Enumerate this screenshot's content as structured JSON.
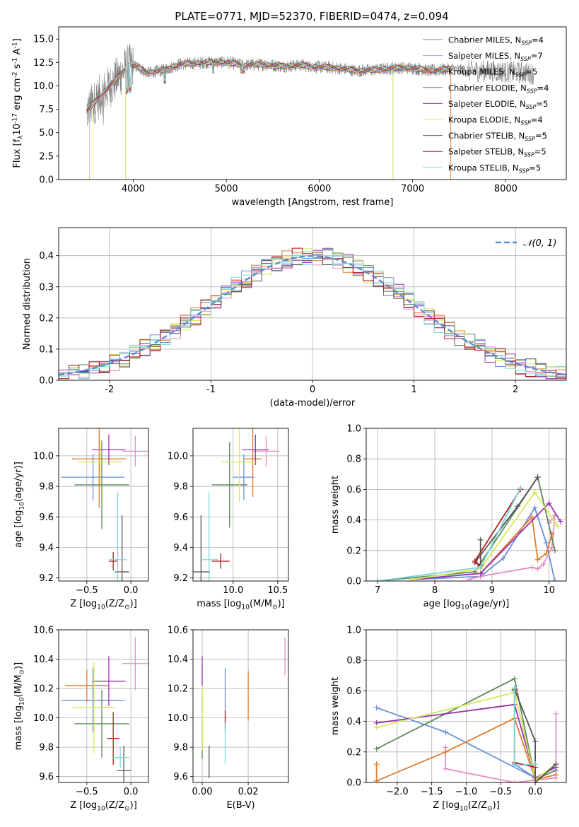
{
  "figure": {
    "title": "PLATE=0771, MJD=52370, FIBERID=0474, z=0.094"
  },
  "series": [
    {
      "name": "Chabrier MILES, N$_{SSP}$=4",
      "label": "Chabrier MILES, N",
      "sub": "SSP",
      "tail": "=4",
      "color": "#6a8fd6"
    },
    {
      "name": "Salpeter MILES, N$_{SSP}$=7",
      "label": "Salpeter MILES, N",
      "sub": "SSP",
      "tail": "=7",
      "color": "#e58ec0"
    },
    {
      "name": "Kroupa MILES, N$_{SSP}$=5",
      "label": "Kroupa MILES, N",
      "sub": "SSP",
      "tail": "=5",
      "color": "#e07b2a"
    },
    {
      "name": "Chabrier ELODIE, N$_{SSP}$=4",
      "label": "Chabrier ELODIE, N",
      "sub": "SSP",
      "tail": "=4",
      "color": "#5a8a5a"
    },
    {
      "name": "Salpeter ELODIE, N$_{SSP}$=5",
      "label": "Salpeter ELODIE, N",
      "sub": "SSP",
      "tail": "=5",
      "color": "#9b30b0"
    },
    {
      "name": "Kroupa ELODIE, N$_{SSP}$=4",
      "label": "Kroupa ELODIE, N",
      "sub": "SSP",
      "tail": "=4",
      "color": "#d6e85a"
    },
    {
      "name": "Chabrier STELIB, N$_{SSP}$=5",
      "label": "Chabrier STELIB, N",
      "sub": "SSP",
      "tail": "=5",
      "color": "#555555"
    },
    {
      "name": "Salpeter STELIB, N$_{SSP}$=5",
      "label": "Salpeter STELIB, N",
      "sub": "SSP",
      "tail": "=5",
      "color": "#b02020"
    },
    {
      "name": "Kroupa STELIB, N$_{SSP}$=5",
      "label": "Kroupa STELIB, N",
      "sub": "SSP",
      "tail": "=5",
      "color": "#7ad8d8"
    }
  ],
  "chart_data": [
    {
      "id": "spectrum",
      "type": "line",
      "xlabel": "wavelength [Angstrom, rest frame]",
      "ylabel": "Flux [f$_\\lambda$10$^{-17}$ erg cm$^{-2}$ s$^{-1}$ A$^{-1}$]",
      "xlim": [
        3200,
        8650
      ],
      "ylim": [
        0,
        16.3
      ],
      "xticks": [
        4000,
        5000,
        6000,
        7000,
        8000
      ],
      "yticks": [
        0.0,
        2.5,
        5.0,
        7.5,
        10.0,
        12.5,
        15.0
      ],
      "legend": "upper right",
      "grid": false,
      "continuum": [
        [
          3500,
          7.2
        ],
        [
          3600,
          8.4
        ],
        [
          3700,
          9.5
        ],
        [
          3800,
          10.5
        ],
        [
          3950,
          12.2
        ],
        [
          4050,
          12.0
        ],
        [
          4150,
          11.4
        ],
        [
          4300,
          11.6
        ],
        [
          4500,
          12.3
        ],
        [
          4800,
          12.5
        ],
        [
          5000,
          12.5
        ],
        [
          5200,
          12.2
        ],
        [
          5400,
          12.3
        ],
        [
          5600,
          12.1
        ],
        [
          5800,
          12.2
        ],
        [
          6000,
          12.0
        ],
        [
          6200,
          11.9
        ],
        [
          6400,
          11.6
        ],
        [
          6600,
          11.7
        ],
        [
          6800,
          11.9
        ],
        [
          7000,
          11.9
        ],
        [
          7200,
          11.6
        ],
        [
          7400,
          11.8
        ],
        [
          7600,
          11.6
        ],
        [
          7800,
          11.6
        ],
        [
          8000,
          11.5
        ],
        [
          8200,
          11.4
        ],
        [
          8300,
          11.3
        ]
      ]
    },
    {
      "id": "residuals",
      "type": "line",
      "xlabel": "(data-model)/error",
      "ylabel": "Normed distribution",
      "xlim": [
        -2.5,
        2.5
      ],
      "ylim": [
        0,
        0.49
      ],
      "xticks": [
        -2,
        -1,
        0,
        1,
        2
      ],
      "yticks": [
        0.0,
        0.1,
        0.2,
        0.3,
        0.4
      ],
      "grid": true,
      "legend": "upper right",
      "gaussian_label": "$\\mathcal{N}(0,1)$",
      "gaussian_legend": "𝒩(0, 1)"
    },
    {
      "id": "age_vs_Z",
      "type": "scatter",
      "xlabel": "Z [log$_{10}$(Z/Z$_\\odot$)]",
      "ylabel": "age  [log$_{10}$(age/yr)]",
      "xlim": [
        -0.82,
        0.2
      ],
      "ylim": [
        9.18,
        10.18
      ],
      "xticks": [
        -0.5,
        0.0
      ],
      "yticks": [
        9.2,
        9.4,
        9.6,
        9.8,
        10.0
      ],
      "grid": true,
      "points": [
        {
          "s": 0,
          "x": -0.43,
          "y": 9.86,
          "xerr": 0.36,
          "yerr": 0.15
        },
        {
          "s": 1,
          "x": 0.05,
          "y": 10.03,
          "xerr": 0.15,
          "yerr": 0.1
        },
        {
          "s": 2,
          "x": -0.36,
          "y": 9.98,
          "xerr": 0.31,
          "yerr": 0.32
        },
        {
          "s": 3,
          "x": -0.33,
          "y": 9.81,
          "xerr": 0.31,
          "yerr": 0.29
        },
        {
          "s": 4,
          "x": -0.25,
          "y": 10.04,
          "xerr": 0.19,
          "yerr": 0.1
        },
        {
          "s": 5,
          "x": -0.35,
          "y": 9.96,
          "xerr": 0.25,
          "yerr": 0.15
        },
        {
          "s": 6,
          "x": -0.1,
          "y": 9.24,
          "xerr": 0.08,
          "yerr": 0.37
        },
        {
          "s": 7,
          "x": -0.2,
          "y": 9.31,
          "xerr": 0.05,
          "yerr": 0.06
        },
        {
          "s": 8,
          "x": -0.15,
          "y": 9.32,
          "xerr": 0.1,
          "yerr": 0.44
        }
      ]
    },
    {
      "id": "age_vs_mass",
      "type": "scatter",
      "xlabel": "mass [log$_{10}$(M/M$_\\odot$)]",
      "ylabel": "",
      "xlim": [
        9.55,
        10.62
      ],
      "ylim": [
        9.18,
        10.18
      ],
      "xticks": [
        10.0,
        10.5
      ],
      "yticks": [
        9.2,
        9.4,
        9.6,
        9.8,
        10.0
      ],
      "grid": true,
      "points": [
        {
          "s": 0,
          "x": 10.12,
          "y": 9.86,
          "xerr": 0.12,
          "yerr": 0.15
        },
        {
          "s": 1,
          "x": 10.37,
          "y": 10.03,
          "xerr": 0.15,
          "yerr": 0.1
        },
        {
          "s": 2,
          "x": 10.22,
          "y": 9.98,
          "xerr": 0.1,
          "yerr": 0.25
        },
        {
          "s": 3,
          "x": 9.96,
          "y": 9.81,
          "xerr": 0.2,
          "yerr": 0.28
        },
        {
          "s": 4,
          "x": 10.25,
          "y": 10.04,
          "xerr": 0.15,
          "yerr": 0.1
        },
        {
          "s": 5,
          "x": 10.07,
          "y": 9.96,
          "xerr": 0.2,
          "yerr": 0.26
        },
        {
          "s": 6,
          "x": 9.64,
          "y": 9.24,
          "xerr": 0.1,
          "yerr": 0.37
        },
        {
          "s": 7,
          "x": 9.86,
          "y": 9.31,
          "xerr": 0.1,
          "yerr": 0.05
        },
        {
          "s": 8,
          "x": 9.73,
          "y": 9.32,
          "xerr": 0.1,
          "yerr": 0.44
        }
      ]
    },
    {
      "id": "massweight_vs_age",
      "type": "line",
      "xlabel": "age  [log$_{10}$(age/yr)]",
      "ylabel": "mass weight",
      "xlim": [
        6.8,
        10.3
      ],
      "ylim": [
        0,
        1
      ],
      "xticks": [
        7,
        8,
        9,
        10
      ],
      "yticks": [
        0.0,
        0.2,
        0.4,
        0.6,
        0.8,
        1.0
      ],
      "grid": true,
      "lines": [
        {
          "s": 0,
          "pts": [
            [
              7.6,
              0.01
            ],
            [
              8.8,
              0.03
            ],
            [
              9.2,
              0.15
            ],
            [
              9.75,
              0.48
            ],
            [
              9.95,
              0.25
            ],
            [
              10.1,
              0.0
            ]
          ]
        },
        {
          "s": 1,
          "pts": [
            [
              8.6,
              0.01
            ],
            [
              8.8,
              0.03
            ],
            [
              9.7,
              0.09
            ],
            [
              9.8,
              0.08
            ],
            [
              9.9,
              0.11
            ],
            [
              10.05,
              0.22
            ],
            [
              10.1,
              0.43
            ],
            [
              10.0,
              0.38
            ]
          ]
        },
        {
          "s": 2,
          "pts": [
            [
              8.8,
              0.05
            ],
            [
              9.7,
              0.42
            ],
            [
              9.8,
              0.14
            ],
            [
              9.95,
              0.18
            ],
            [
              10.05,
              0.31
            ]
          ]
        },
        {
          "s": 3,
          "pts": [
            [
              7.0,
              0.0
            ],
            [
              8.7,
              0.06
            ],
            [
              9.8,
              0.68
            ],
            [
              10.1,
              0.2
            ]
          ]
        },
        {
          "s": 4,
          "pts": [
            [
              7.6,
              0.01
            ],
            [
              8.8,
              0.05
            ],
            [
              10.0,
              0.51
            ],
            [
              10.2,
              0.39
            ]
          ]
        },
        {
          "s": 5,
          "pts": [
            [
              7.6,
              0.01
            ],
            [
              8.8,
              0.08
            ],
            [
              9.75,
              0.58
            ],
            [
              10.15,
              0.36
            ]
          ]
        },
        {
          "s": 6,
          "pts": [
            [
              8.8,
              0.27
            ],
            [
              8.8,
              0.1
            ],
            [
              8.7,
              0.12
            ],
            [
              9.45,
              0.49
            ],
            [
              9.8,
              0.68
            ]
          ]
        },
        {
          "s": 7,
          "pts": [
            [
              8.8,
              0.1
            ],
            [
              8.7,
              0.13
            ],
            [
              9.5,
              0.6
            ]
          ]
        },
        {
          "s": 8,
          "pts": [
            [
              7.0,
              0.0
            ],
            [
              8.8,
              0.09
            ],
            [
              9.5,
              0.61
            ]
          ]
        }
      ]
    },
    {
      "id": "mass_vs_Z",
      "type": "scatter",
      "xlabel": "Z [log$_{10}$(Z/Z$_\\odot$)]",
      "ylabel": "mass [log$_{10}$(M/M$_\\odot$)]",
      "xlim": [
        -0.82,
        0.2
      ],
      "ylim": [
        9.56,
        10.6
      ],
      "xticks": [
        -0.5,
        0.0
      ],
      "yticks": [
        9.6,
        9.8,
        10.0,
        10.2,
        10.4,
        10.6
      ],
      "grid": true,
      "points": [
        {
          "s": 0,
          "x": -0.43,
          "y": 10.12,
          "xerr": 0.36,
          "yerr": 0.22
        },
        {
          "s": 1,
          "x": 0.05,
          "y": 10.37,
          "xerr": 0.15,
          "yerr": 0.18
        },
        {
          "s": 2,
          "x": -0.5,
          "y": 10.22,
          "xerr": 0.25,
          "yerr": 0.11
        },
        {
          "s": 3,
          "x": -0.33,
          "y": 9.96,
          "xerr": 0.31,
          "yerr": 0.23
        },
        {
          "s": 4,
          "x": -0.25,
          "y": 10.25,
          "xerr": 0.19,
          "yerr": 0.17
        },
        {
          "s": 5,
          "x": -0.42,
          "y": 10.07,
          "xerr": 0.25,
          "yerr": 0.31
        },
        {
          "s": 6,
          "x": -0.08,
          "y": 9.64,
          "xerr": 0.08,
          "yerr": 0.17
        },
        {
          "s": 7,
          "x": -0.2,
          "y": 9.86,
          "xerr": 0.07,
          "yerr": 0.18
        },
        {
          "s": 8,
          "x": -0.12,
          "y": 9.73,
          "xerr": 0.1,
          "yerr": 0.07
        }
      ]
    },
    {
      "id": "mass_vs_ebv",
      "type": "scatter",
      "xlabel": "E(B-V)",
      "ylabel": "",
      "xlim": [
        -0.004,
        0.0375
      ],
      "ylim": [
        9.56,
        10.6
      ],
      "xticks": [
        0.0,
        0.02
      ],
      "yticks": [
        9.6,
        9.8,
        10.0,
        10.2,
        10.4,
        10.6
      ],
      "grid": true,
      "points": [
        {
          "s": 0,
          "x": 0.01,
          "y": 10.12,
          "xerr": 0,
          "yerr": 0.22
        },
        {
          "s": 1,
          "x": 0.036,
          "y": 10.42,
          "xerr": 0,
          "yerr": 0.13
        },
        {
          "s": 2,
          "x": 0.02,
          "y": 10.15,
          "xerr": 0,
          "yerr": 0.17
        },
        {
          "s": 3,
          "x": 0.0,
          "y": 9.96,
          "xerr": 0,
          "yerr": 0.24
        },
        {
          "s": 4,
          "x": 0.0,
          "y": 10.32,
          "xerr": 0,
          "yerr": 0.1
        },
        {
          "s": 5,
          "x": 0.0,
          "y": 10.0,
          "xerr": 0,
          "yerr": 0.22
        },
        {
          "s": 6,
          "x": 0.003,
          "y": 9.7,
          "xerr": 0,
          "yerr": 0.11
        },
        {
          "s": 7,
          "x": 0.01,
          "y": 9.99,
          "xerr": 0,
          "yerr": 0.06
        },
        {
          "s": 8,
          "x": 0.01,
          "y": 9.83,
          "xerr": 0,
          "yerr": 0.14
        }
      ]
    },
    {
      "id": "massweight_vs_Z",
      "type": "line",
      "xlabel": "Z [log$_{10}$(Z/Z$_\\odot$)]",
      "ylabel": "mass weight",
      "xlim": [
        -2.45,
        0.45
      ],
      "ylim": [
        0,
        1
      ],
      "xticks": [
        -2.0,
        -1.5,
        -1.0,
        -0.5,
        0.0
      ],
      "yticks": [
        0.0,
        0.2,
        0.4,
        0.6,
        0.8,
        1.0
      ],
      "grid": true,
      "lines": [
        {
          "s": 0,
          "pts": [
            [
              -2.3,
              0.49
            ],
            [
              -1.3,
              0.33
            ],
            [
              0.0,
              0.03
            ],
            [
              -0.3,
              0.12
            ]
          ]
        },
        {
          "s": 1,
          "pts": [
            [
              -1.3,
              0.23
            ],
            [
              -1.3,
              0.09
            ],
            [
              -0.3,
              0.0
            ],
            [
              0.3,
              0.03
            ],
            [
              0.3,
              0.45
            ]
          ]
        },
        {
          "s": 2,
          "pts": [
            [
              -2.3,
              0.12
            ],
            [
              -2.3,
              0.01
            ],
            [
              -1.3,
              0.2
            ],
            [
              -0.3,
              0.42
            ],
            [
              0.0,
              0.02
            ],
            [
              0.3,
              0.05
            ]
          ]
        },
        {
          "s": 3,
          "pts": [
            [
              -2.3,
              0.22
            ],
            [
              -0.3,
              0.68
            ],
            [
              0.0,
              0.02
            ],
            [
              0.3,
              0.08
            ]
          ]
        },
        {
          "s": 4,
          "pts": [
            [
              -2.3,
              0.39
            ],
            [
              -0.3,
              0.51
            ],
            [
              0.0,
              0.03
            ],
            [
              0.3,
              0.1
            ]
          ]
        },
        {
          "s": 5,
          "pts": [
            [
              -2.3,
              0.36
            ],
            [
              -0.3,
              0.59
            ],
            [
              0.0,
              0.02
            ],
            [
              0.3,
              0.12
            ]
          ]
        },
        {
          "s": 6,
          "pts": [
            [
              -0.3,
              0.61
            ],
            [
              0.0,
              0.27
            ],
            [
              0.0,
              0.0
            ],
            [
              0.3,
              0.12
            ]
          ]
        },
        {
          "s": 7,
          "pts": [
            [
              -0.3,
              0.6
            ],
            [
              -0.3,
              0.13
            ],
            [
              0.0,
              0.1
            ]
          ]
        },
        {
          "s": 8,
          "pts": [
            [
              -0.3,
              0.62
            ],
            [
              -0.3,
              0.11
            ],
            [
              0.0,
              0.12
            ]
          ]
        }
      ]
    }
  ]
}
